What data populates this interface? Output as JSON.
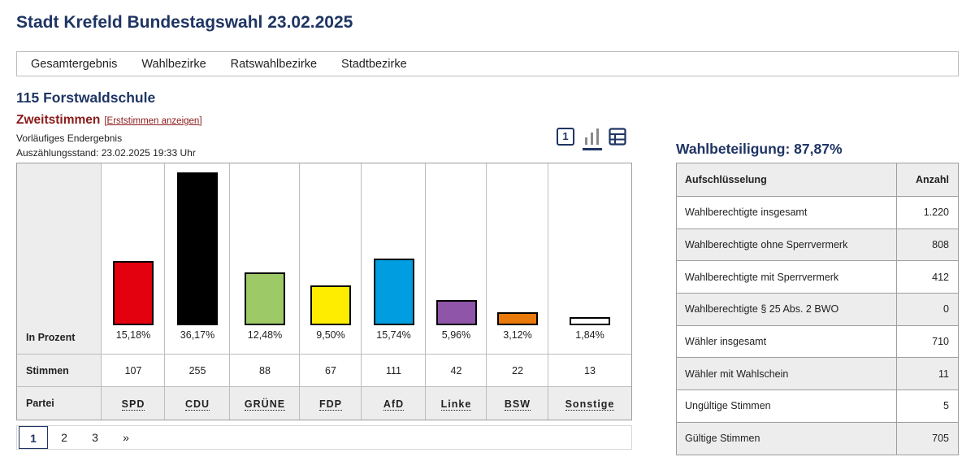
{
  "title": "Stadt Krefeld Bundestagswahl 23.02.2025",
  "nav": [
    "Gesamtergebnis",
    "Wahlbezirke",
    "Ratswahlbezirke",
    "Stadtbezirke"
  ],
  "district": "115 Forstwaldschule",
  "vote_type": "Zweitstimmen",
  "vote_toggle": "[Erststimmen anzeigen]",
  "status": "Vorläufiges Endergebnis",
  "count_status": "Auszählungsstand: 23.02.2025 19:33 Uhr",
  "view_icons": [
    "one-icon",
    "bar-chart-icon",
    "table-icon"
  ],
  "view_one_label": "1",
  "row_labels": {
    "percent": "In Prozent",
    "votes": "Stimmen",
    "party": "Partei"
  },
  "chart_data": {
    "type": "bar",
    "categories": [
      "SPD",
      "CDU",
      "GRÜNE",
      "FDP",
      "AfD",
      "Linke",
      "BSW",
      "Sonstige"
    ],
    "values": [
      15.18,
      36.17,
      12.48,
      9.5,
      15.74,
      5.96,
      3.12,
      1.84
    ],
    "value_labels": [
      "15,18%",
      "36,17%",
      "12,48%",
      "9,50%",
      "15,74%",
      "5,96%",
      "3,12%",
      "1,84%"
    ],
    "votes": [
      "107",
      "255",
      "88",
      "67",
      "111",
      "42",
      "22",
      "13"
    ],
    "colors": [
      "#e3000f",
      "#000000",
      "#9dc967",
      "#ffed00",
      "#009ee0",
      "#8e55a8",
      "#e8790a",
      "#ffffff"
    ],
    "ylabel": "In Prozent"
  },
  "pager": [
    "1",
    "2",
    "3",
    "»"
  ],
  "turnout": "Wahlbeteiligung: 87,87%",
  "stats": {
    "header": [
      "Aufschlüsselung",
      "Anzahl"
    ],
    "rows": [
      [
        "Wahlberechtigte insgesamt",
        "1.220"
      ],
      [
        "Wahlberechtigte ohne Sperrvermerk",
        "808"
      ],
      [
        "Wahlberechtigte mit Sperrvermerk",
        "412"
      ],
      [
        "Wahlberechtigte § 25 Abs. 2 BWO",
        "0"
      ],
      [
        "Wähler insgesamt",
        "710"
      ],
      [
        "Wähler mit Wahlschein",
        "11"
      ],
      [
        "Ungültige Stimmen",
        "5"
      ],
      [
        "Gültige Stimmen",
        "705"
      ]
    ]
  }
}
